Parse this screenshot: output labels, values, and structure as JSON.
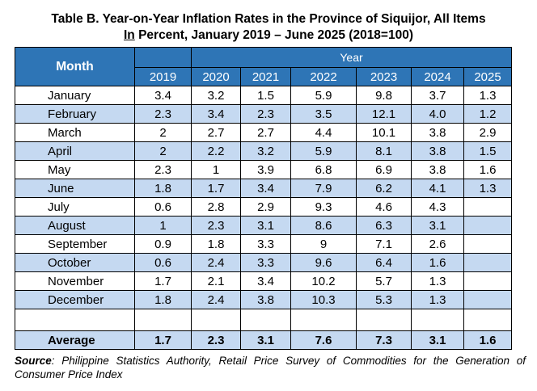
{
  "title": {
    "line1": "Table B. Year-on-Year Inflation Rates in the Province of Siquijor, All Items",
    "line2_underlined": "In",
    "line2_rest": " Percent, January 2019 – June 2025 (2018=100)"
  },
  "table": {
    "month_header": "Month",
    "year_group_header": "Year",
    "years": [
      "2019",
      "2020",
      "2021",
      "2022",
      "2023",
      "2024",
      "2025"
    ],
    "rows": [
      {
        "month": "January",
        "values": [
          "3.4",
          "3.2",
          "1.5",
          "5.9",
          "9.8",
          "3.7",
          "1.3"
        ]
      },
      {
        "month": "February",
        "values": [
          "2.3",
          "3.4",
          "2.3",
          "3.5",
          "12.1",
          "4.0",
          "1.2"
        ]
      },
      {
        "month": "March",
        "values": [
          "2",
          "2.7",
          "2.7",
          "4.4",
          "10.1",
          "3.8",
          "2.9"
        ]
      },
      {
        "month": "April",
        "values": [
          "2",
          "2.2",
          "3.2",
          "5.9",
          "8.1",
          "3.8",
          "1.5"
        ]
      },
      {
        "month": "May",
        "values": [
          "2.3",
          "1",
          "3.9",
          "6.8",
          "6.9",
          "3.8",
          "1.6"
        ]
      },
      {
        "month": "June",
        "values": [
          "1.8",
          "1.7",
          "3.4",
          "7.9",
          "6.2",
          "4.1",
          "1.3"
        ]
      },
      {
        "month": "July",
        "values": [
          "0.6",
          "2.8",
          "2.9",
          "9.3",
          "4.6",
          "4.3",
          ""
        ]
      },
      {
        "month": "August",
        "values": [
          "1",
          "2.3",
          "3.1",
          "8.6",
          "6.3",
          "3.1",
          ""
        ]
      },
      {
        "month": "September",
        "values": [
          "0.9",
          "1.8",
          "3.3",
          "9",
          "7.1",
          "2.6",
          ""
        ]
      },
      {
        "month": "October",
        "values": [
          "0.6",
          "2.4",
          "3.3",
          "9.6",
          "6.4",
          "1.6",
          ""
        ]
      },
      {
        "month": "November",
        "values": [
          "1.7",
          "2.1",
          "3.4",
          "10.2",
          "5.7",
          "1.3",
          ""
        ]
      },
      {
        "month": "December",
        "values": [
          "1.8",
          "2.4",
          "3.8",
          "10.3",
          "5.3",
          "1.3",
          ""
        ]
      }
    ],
    "average": {
      "label": "Average",
      "values": [
        "1.7",
        "2.3",
        "3.1",
        "7.6",
        "7.3",
        "3.1",
        "1.6"
      ]
    }
  },
  "source": {
    "label": "Source",
    "text": ": Philippine Statistics Authority, Retail Price Survey of Commodities for the Generation of Consumer Price Index"
  },
  "colors": {
    "header_bg": "#2e75b6",
    "stripe_bg": "#c5d9f1",
    "white_bg": "#ffffff"
  }
}
